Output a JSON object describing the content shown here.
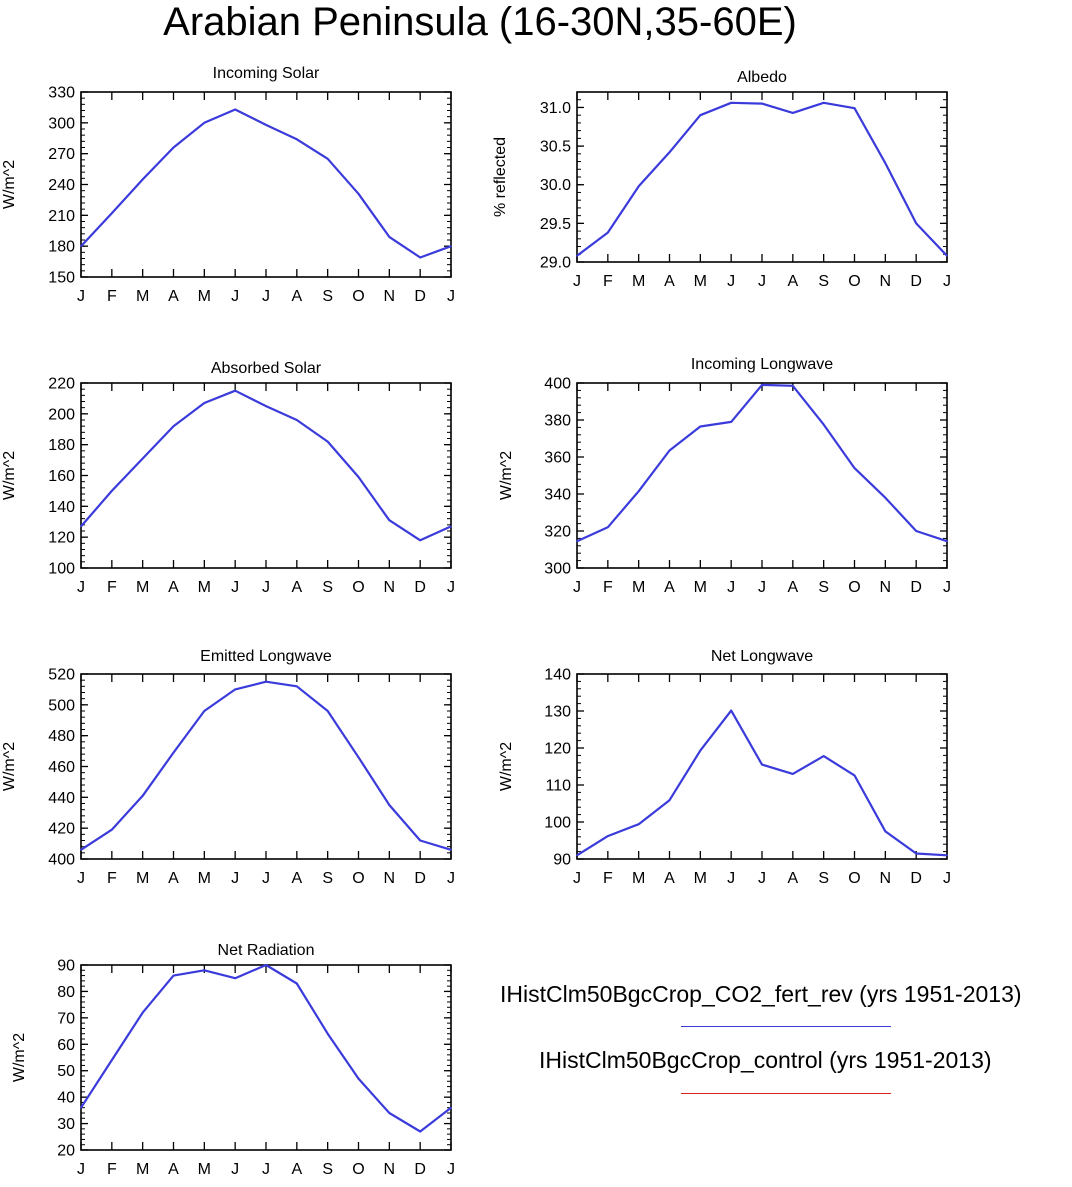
{
  "title": "Arabian Peninsula (16-30N,35-60E)",
  "month_labels": [
    "J",
    "F",
    "M",
    "A",
    "M",
    "J",
    "J",
    "A",
    "S",
    "O",
    "N",
    "D",
    "J"
  ],
  "legend": {
    "items": [
      {
        "label": "IHistClm50BgcCrop_CO2_fert_rev (yrs 1951-2013)",
        "color": "#3b3bdc"
      },
      {
        "label": "IHistClm50BgcCrop_control (yrs 1951-2013)",
        "color": "#e02020"
      }
    ]
  },
  "chart_data": [
    {
      "type": "line",
      "title": "Incoming Solar",
      "ylabel": "W/m^2",
      "ylim": [
        150,
        330
      ],
      "yticks": [
        150,
        180,
        210,
        240,
        270,
        300,
        330
      ],
      "ydecimals": 0,
      "categories": [
        "J",
        "F",
        "M",
        "A",
        "M",
        "J",
        "J",
        "A",
        "S",
        "O",
        "N",
        "D",
        "J"
      ],
      "series": [
        {
          "values": [
            180,
            212,
            245,
            276,
            300,
            313,
            298,
            284,
            265,
            231,
            189,
            169,
            180
          ]
        }
      ]
    },
    {
      "type": "line",
      "title": "Albedo",
      "ylabel": "% reflected",
      "ylim": [
        29.0,
        31.2
      ],
      "yticks": [
        29.0,
        29.5,
        30.0,
        30.5,
        31.0
      ],
      "ydecimals": 1,
      "categories": [
        "J",
        "F",
        "M",
        "A",
        "M",
        "J",
        "J",
        "A",
        "S",
        "O",
        "N",
        "D",
        "J"
      ],
      "series": [
        {
          "values": [
            29.08,
            29.38,
            29.98,
            30.42,
            30.9,
            31.06,
            31.05,
            30.93,
            31.06,
            30.99,
            30.28,
            29.5,
            29.08
          ]
        }
      ]
    },
    {
      "type": "line",
      "title": "Absorbed Solar",
      "ylabel": "W/m^2",
      "ylim": [
        100,
        220
      ],
      "yticks": [
        100,
        120,
        140,
        160,
        180,
        200,
        220
      ],
      "ydecimals": 0,
      "categories": [
        "J",
        "F",
        "M",
        "A",
        "M",
        "J",
        "J",
        "A",
        "S",
        "O",
        "N",
        "D",
        "J"
      ],
      "series": [
        {
          "values": [
            127,
            150,
            171,
            192,
            207,
            215,
            205,
            196,
            182,
            159,
            131,
            118,
            127
          ]
        }
      ]
    },
    {
      "type": "line",
      "title": "Incoming Longwave",
      "ylabel": "W/m^2",
      "ylim": [
        300,
        400
      ],
      "yticks": [
        300,
        320,
        340,
        360,
        380,
        400
      ],
      "ydecimals": 0,
      "categories": [
        "J",
        "F",
        "M",
        "A",
        "M",
        "J",
        "J",
        "A",
        "S",
        "O",
        "N",
        "D",
        "J"
      ],
      "series": [
        {
          "values": [
            314.5,
            322,
            341.5,
            363.5,
            376.5,
            379,
            399,
            398.5,
            377.5,
            354,
            338,
            320,
            314.5
          ]
        }
      ]
    },
    {
      "type": "line",
      "title": "Emitted Longwave",
      "ylabel": "W/m^2",
      "ylim": [
        400,
        520
      ],
      "yticks": [
        400,
        420,
        440,
        460,
        480,
        500,
        520
      ],
      "ydecimals": 0,
      "categories": [
        "J",
        "F",
        "M",
        "A",
        "M",
        "J",
        "J",
        "A",
        "S",
        "O",
        "N",
        "D",
        "J"
      ],
      "series": [
        {
          "values": [
            406,
            419,
            441,
            469,
            496,
            510,
            515,
            512,
            496,
            466,
            435,
            412,
            406
          ]
        }
      ]
    },
    {
      "type": "line",
      "title": "Net Longwave",
      "ylabel": "W/m^2",
      "ylim": [
        90,
        140
      ],
      "yticks": [
        90,
        100,
        110,
        120,
        130,
        140
      ],
      "ydecimals": 0,
      "categories": [
        "J",
        "F",
        "M",
        "A",
        "M",
        "J",
        "J",
        "A",
        "S",
        "O",
        "N",
        "D",
        "J"
      ],
      "series": [
        {
          "values": [
            91,
            96.2,
            99.4,
            105.9,
            119.3,
            130.1,
            115.5,
            113,
            117.8,
            112.6,
            97.5,
            91.5,
            91
          ]
        }
      ]
    },
    {
      "type": "line",
      "title": "Net Radiation",
      "ylabel": "W/m^2",
      "ylim": [
        20,
        90
      ],
      "yticks": [
        20,
        30,
        40,
        50,
        60,
        70,
        80,
        90
      ],
      "ydecimals": 0,
      "categories": [
        "J",
        "F",
        "M",
        "A",
        "M",
        "J",
        "J",
        "A",
        "S",
        "O",
        "N",
        "D",
        "J"
      ],
      "series": [
        {
          "values": [
            36,
            54,
            72,
            86,
            88,
            85,
            90,
            83,
            64,
            47,
            34,
            27,
            36
          ]
        }
      ]
    }
  ]
}
